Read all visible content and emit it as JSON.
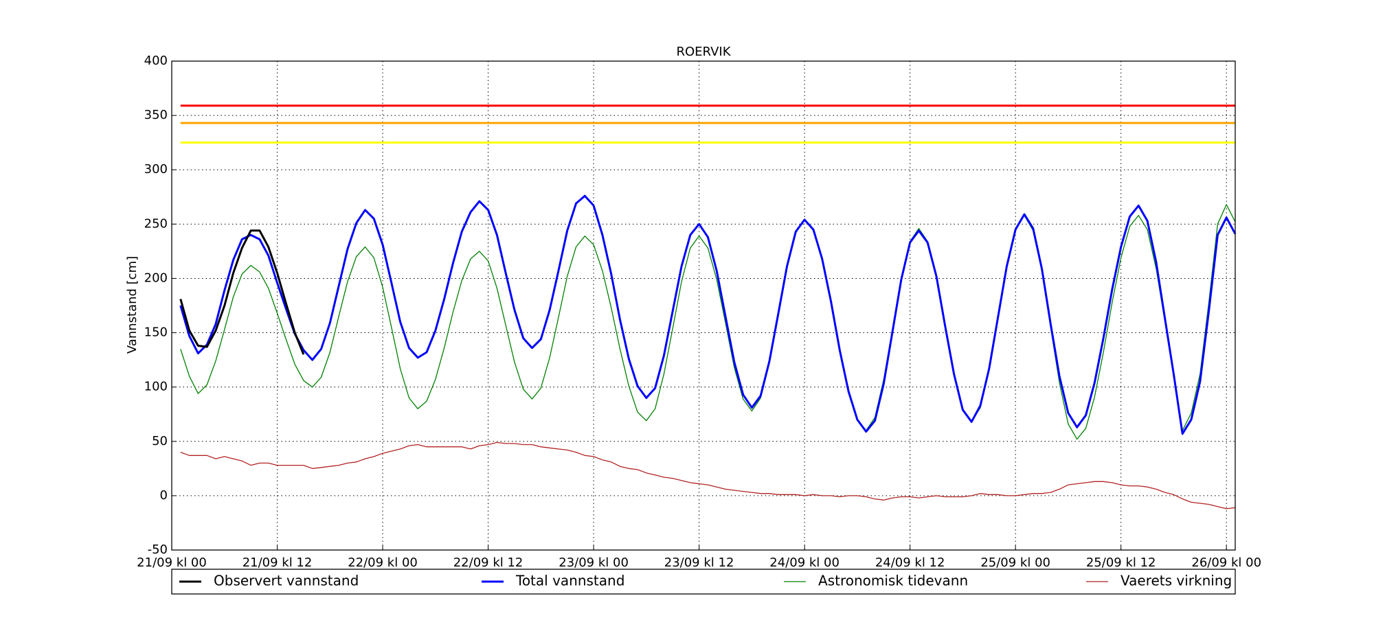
{
  "chart_data": {
    "type": "line",
    "title": "ROERVIK",
    "ylabel": "Vannstand [cm]",
    "x": [
      1,
      2,
      3,
      4,
      5,
      6,
      7,
      8,
      9,
      10,
      11,
      12,
      13,
      14,
      15,
      16,
      17,
      18,
      19,
      20,
      21,
      22,
      23,
      24,
      25,
      26,
      27,
      28,
      29,
      30,
      31,
      32,
      33,
      34,
      35,
      36,
      37,
      38,
      39,
      40,
      41,
      42,
      43,
      44,
      45,
      46,
      47,
      48,
      49,
      50,
      51,
      52,
      53,
      54,
      55,
      56,
      57,
      58,
      59,
      60,
      61,
      62,
      63,
      64,
      65,
      66,
      67,
      68,
      69,
      70,
      71,
      72,
      73,
      74,
      75,
      76,
      77,
      78,
      79,
      80,
      81,
      82,
      83,
      84,
      85,
      86,
      87,
      88,
      89,
      90,
      91,
      92,
      93,
      94,
      95,
      96,
      97,
      98,
      99,
      100,
      101,
      102,
      103,
      104,
      105,
      106,
      107,
      108,
      109,
      110,
      111,
      112,
      113,
      114,
      115,
      116,
      117,
      118,
      119,
      120,
      121
    ],
    "series": [
      {
        "name": "Observert vannstand",
        "color": "#000000",
        "width": 3,
        "values": [
          181,
          152,
          138,
          137,
          152,
          175,
          205,
          228,
          244,
          244,
          229,
          205,
          177,
          150,
          130,
          null,
          null,
          null,
          null,
          null,
          null,
          null,
          null,
          null,
          null,
          null,
          null,
          null,
          null,
          null,
          null,
          null,
          null,
          null,
          null,
          null,
          null,
          null,
          null,
          null,
          null,
          null,
          null,
          null,
          null,
          null,
          null,
          null,
          null,
          null,
          null,
          null,
          null,
          null,
          null,
          null,
          null,
          null,
          null,
          null,
          null,
          null,
          null,
          null,
          null,
          null,
          null,
          null,
          null,
          null,
          null,
          null,
          null,
          null,
          null,
          null,
          null,
          null,
          null,
          null,
          null,
          null,
          null,
          null,
          null,
          null,
          null,
          null,
          null,
          null,
          null,
          null,
          null,
          null,
          null,
          null,
          null,
          null,
          null,
          null,
          null,
          null,
          null,
          null,
          null,
          null,
          null,
          null,
          null,
          null,
          null,
          null,
          null,
          null,
          null,
          null,
          null,
          null,
          null,
          null,
          null
        ]
      },
      {
        "name": "Total vannstand",
        "color": "#0000ff",
        "width": 3,
        "values": [
          175,
          147,
          131,
          139,
          158,
          189,
          217,
          236,
          240,
          236,
          221,
          196,
          172,
          149,
          134,
          125,
          135,
          159,
          193,
          227,
          251,
          263,
          255,
          231,
          196,
          160,
          136,
          127,
          132,
          152,
          181,
          214,
          243,
          261,
          271,
          263,
          240,
          205,
          171,
          145,
          136,
          144,
          171,
          207,
          244,
          269,
          276,
          267,
          240,
          204,
          162,
          126,
          101,
          90,
          99,
          129,
          170,
          211,
          240,
          250,
          238,
          207,
          165,
          123,
          93,
          81,
          92,
          124,
          167,
          211,
          243,
          254,
          245,
          218,
          179,
          134,
          96,
          70,
          59,
          69,
          103,
          151,
          199,
          233,
          244,
          233,
          202,
          156,
          112,
          79,
          68,
          83,
          117,
          164,
          211,
          245,
          259,
          246,
          209,
          158,
          110,
          76,
          63,
          74,
          104,
          145,
          190,
          229,
          257,
          267,
          253,
          215,
          163,
          112,
          57,
          70,
          105,
          170,
          240,
          256,
          241
        ]
      },
      {
        "name": "Astronomisk tidevann",
        "color": "#008000",
        "width": 1.3,
        "values": [
          135,
          110,
          94,
          102,
          124,
          153,
          183,
          204,
          212,
          206,
          191,
          168,
          144,
          121,
          106,
          100,
          109,
          132,
          165,
          197,
          220,
          229,
          219,
          192,
          155,
          117,
          90,
          80,
          87,
          107,
          136,
          169,
          198,
          218,
          225,
          216,
          191,
          157,
          123,
          98,
          89,
          99,
          127,
          164,
          202,
          229,
          239,
          231,
          207,
          173,
          135,
          101,
          77,
          69,
          80,
          112,
          154,
          197,
          228,
          239,
          228,
          199,
          159,
          118,
          89,
          78,
          90,
          122,
          166,
          210,
          242,
          254,
          244,
          218,
          179,
          135,
          96,
          70,
          60,
          72,
          107,
          153,
          200,
          234,
          246,
          234,
          202,
          157,
          113,
          80,
          68,
          81,
          116,
          163,
          211,
          245,
          258,
          244,
          207,
          155,
          104,
          66,
          52,
          62,
          91,
          132,
          178,
          219,
          248,
          258,
          245,
          209,
          160,
          111,
          60,
          76,
          112,
          178,
          250,
          268,
          252
        ]
      },
      {
        "name": "Vaerets virkning",
        "color": "#b22222",
        "width": 1.3,
        "values": [
          40,
          37,
          37,
          37,
          34,
          36,
          34,
          32,
          28,
          30,
          30,
          28,
          28,
          28,
          28,
          25,
          26,
          27,
          28,
          30,
          31,
          34,
          36,
          39,
          41,
          43,
          46,
          47,
          45,
          45,
          45,
          45,
          45,
          43,
          46,
          47,
          49,
          48,
          48,
          47,
          47,
          45,
          44,
          43,
          42,
          40,
          37,
          36,
          33,
          31,
          27,
          25,
          24,
          21,
          19,
          17,
          16,
          14,
          12,
          11,
          10,
          8,
          6,
          5,
          4,
          3,
          2,
          2,
          1,
          1,
          1,
          0,
          1,
          0,
          0,
          -1,
          0,
          0,
          -1,
          -3,
          -4,
          -2,
          -1,
          -1,
          -2,
          -1,
          0,
          -1,
          -1,
          -1,
          0,
          2,
          1,
          1,
          0,
          0,
          1,
          2,
          2,
          3,
          6,
          10,
          11,
          12,
          13,
          13,
          12,
          10,
          9,
          9,
          8,
          6,
          3,
          1,
          -3,
          -6,
          -7,
          -8,
          -10,
          -12,
          -11
        ]
      }
    ],
    "reference_lines": [
      {
        "value": 359,
        "color": "#ff0000",
        "start": 1
      },
      {
        "value": 343,
        "color": "#ffa500",
        "start": 1
      },
      {
        "value": 325,
        "color": "#ffff00",
        "start": 1
      }
    ],
    "xlim": [
      0,
      121
    ],
    "xticks": [
      {
        "value": 0,
        "label": "21/09 kl 00"
      },
      {
        "value": 12,
        "label": "21/09 kl 12"
      },
      {
        "value": 24,
        "label": "22/09 kl 00"
      },
      {
        "value": 36,
        "label": "22/09 kl 12"
      },
      {
        "value": 48,
        "label": "23/09 kl 00"
      },
      {
        "value": 60,
        "label": "23/09 kl 12"
      },
      {
        "value": 72,
        "label": "24/09 kl 00"
      },
      {
        "value": 84,
        "label": "24/09 kl 12"
      },
      {
        "value": 96,
        "label": "25/09 kl 00"
      },
      {
        "value": 108,
        "label": "25/09 kl 12"
      },
      {
        "value": 120,
        "label": "26/09 kl 00"
      }
    ],
    "ylim": [
      -50,
      400
    ],
    "yticks": [
      -50,
      0,
      50,
      100,
      150,
      200,
      250,
      300,
      350,
      400
    ],
    "grid": true,
    "legend": "bottom"
  }
}
